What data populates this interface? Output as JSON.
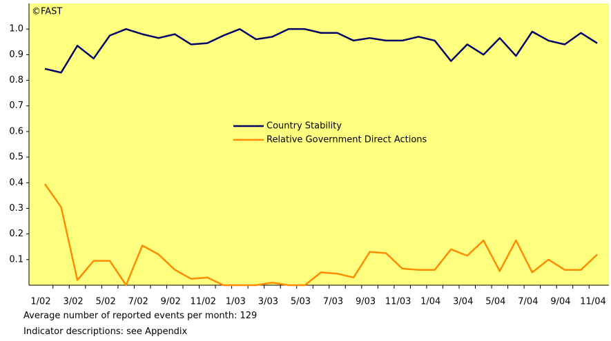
{
  "chart_data": {
    "type": "line",
    "source": "©FAST",
    "categories": [
      "1/02",
      null,
      "3/02",
      null,
      "5/02",
      null,
      "7/02",
      null,
      "9/02",
      null,
      "11/02",
      null,
      "1/03",
      null,
      "3/03",
      null,
      "5/03",
      null,
      "7/03",
      null,
      "9/03",
      null,
      "11/03",
      null,
      "1/04",
      null,
      "3/04",
      null,
      "5/04",
      null,
      "7/04",
      null,
      "9/04",
      null,
      "11/04"
    ],
    "series": [
      {
        "name": "Country Stability",
        "color": "#000066",
        "values": [
          0.845,
          0.83,
          0.935,
          0.885,
          0.975,
          1.0,
          0.98,
          0.965,
          0.98,
          0.94,
          0.945,
          0.975,
          1.0,
          0.96,
          0.97,
          1.0,
          1.0,
          0.985,
          0.985,
          0.955,
          0.965,
          0.955,
          0.955,
          0.97,
          0.955,
          0.875,
          0.94,
          0.9,
          0.965,
          0.895,
          0.99,
          0.955,
          0.94,
          0.985,
          0.945
        ]
      },
      {
        "name": "Relative Government Direct Actions",
        "color": "#ff8c00",
        "values": [
          0.395,
          0.305,
          0.02,
          0.095,
          0.095,
          0.0,
          0.155,
          0.12,
          0.06,
          0.025,
          0.03,
          0.0,
          0.0,
          0.0,
          0.01,
          0.0,
          0.0,
          0.05,
          0.045,
          0.03,
          0.13,
          0.125,
          0.065,
          0.06,
          0.06,
          0.14,
          0.115,
          0.175,
          0.055,
          0.175,
          0.05,
          0.1,
          0.06,
          0.06,
          0.12
        ]
      }
    ],
    "ylim": [
      0,
      1.1
    ],
    "yticks": [
      0.1,
      0.2,
      0.3,
      0.4,
      0.5,
      0.6,
      0.7,
      0.8,
      0.9,
      {
        "value": 1,
        "label": "1.0"
      }
    ],
    "background": "#ffff80",
    "notes": [
      "Average number of reported events per month: 129",
      "Indicator descriptions: see Appendix"
    ]
  }
}
